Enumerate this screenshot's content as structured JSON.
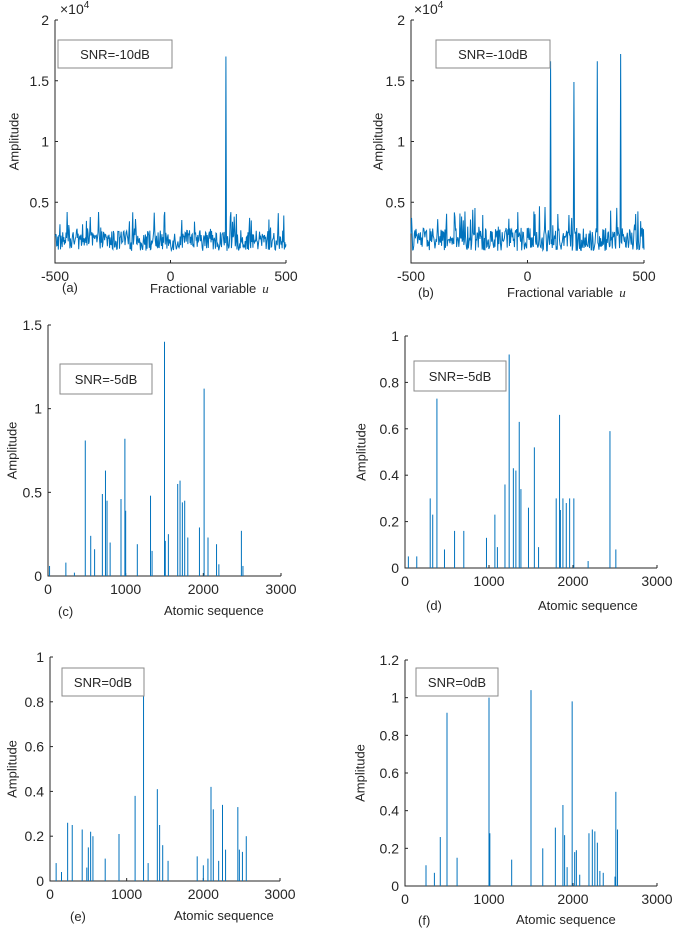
{
  "figure": {
    "series_color": "#0072BD",
    "axis_color": "#262626"
  },
  "chart_data": [
    {
      "id": "a",
      "panel_label": "(a)",
      "type": "line",
      "legend": "SNR=-10dB",
      "xlabel": "Fractional variable",
      "xlabel_var": "u",
      "ylabel": "Amplitude",
      "xlim": [
        -500,
        500
      ],
      "ylim": [
        0,
        20000
      ],
      "xticks": [
        -500,
        0,
        500
      ],
      "xtick_labels": [
        "-500",
        "0",
        "500"
      ],
      "yticks": [
        5000,
        10000,
        15000,
        20000
      ],
      "ytick_labels": [
        "0.5",
        "1",
        "1.5",
        "2"
      ],
      "y_multiplier": "×10",
      "y_multiplier_exp": "4",
      "noise": {
        "x_range": [
          -500,
          500
        ],
        "floor": 1000,
        "typical_peak": 2700,
        "max": 4200
      },
      "peaks": [
        {
          "x": 240,
          "y": 17000
        }
      ]
    },
    {
      "id": "b",
      "panel_label": "(b)",
      "type": "line",
      "legend": "SNR=-10dB",
      "xlabel": "Fractional variable",
      "xlabel_var": "u",
      "ylabel": "Amplitude",
      "xlim": [
        -500,
        500
      ],
      "ylim": [
        0,
        20000
      ],
      "xticks": [
        -500,
        0,
        500
      ],
      "xtick_labels": [
        "-500",
        "0",
        "500"
      ],
      "yticks": [
        5000,
        10000,
        15000,
        20000
      ],
      "ytick_labels": [
        "0.5",
        "1",
        "1.5",
        "2"
      ],
      "y_multiplier": "×10",
      "y_multiplier_exp": "4",
      "noise": {
        "x_range": [
          -500,
          500
        ],
        "floor": 1000,
        "typical_peak": 2900,
        "max": 4700
      },
      "peaks": [
        {
          "x": 100,
          "y": 16600
        },
        {
          "x": 200,
          "y": 14900
        },
        {
          "x": 300,
          "y": 16600
        },
        {
          "x": 400,
          "y": 17200
        }
      ]
    },
    {
      "id": "c",
      "panel_label": "(c)",
      "type": "stem",
      "legend": "SNR=-5dB",
      "xlabel": "Atomic sequence",
      "ylabel": "Amplitude",
      "xlim": [
        0,
        3000
      ],
      "ylim": [
        0,
        1.5
      ],
      "xticks": [
        0,
        1000,
        2000,
        3000
      ],
      "xtick_labels": [
        "0",
        "1000",
        "2000",
        "3000"
      ],
      "yticks": [
        0,
        0.5,
        1,
        1.5
      ],
      "ytick_labels": [
        "0",
        "0.5",
        "1",
        "1.5"
      ],
      "x": [
        20,
        230,
        340,
        480,
        550,
        600,
        700,
        740,
        760,
        800,
        940,
        990,
        1000,
        1150,
        1320,
        1340,
        1500,
        1510,
        1550,
        1670,
        1700,
        1730,
        1760,
        1800,
        1950,
        2010,
        2060,
        2170,
        2200,
        2490,
        2510
      ],
      "values": [
        0.06,
        0.08,
        0.02,
        0.81,
        0.24,
        0.16,
        0.49,
        0.63,
        0.45,
        0.2,
        0.46,
        0.82,
        0.39,
        0.19,
        0.48,
        0.15,
        1.4,
        0.21,
        0.25,
        0.55,
        0.57,
        0.44,
        0.45,
        0.23,
        0.29,
        1.12,
        0.23,
        0.19,
        0.07,
        0.27,
        0.06
      ]
    },
    {
      "id": "d",
      "panel_label": "(d)",
      "type": "stem",
      "legend": "SNR=-5dB",
      "xlabel": "Atomic sequence",
      "ylabel": "Amplitude",
      "xlim": [
        0,
        3000
      ],
      "ylim": [
        0,
        1
      ],
      "xticks": [
        0,
        1000,
        2000,
        3000
      ],
      "xtick_labels": [
        "0",
        "1000",
        "2000",
        "3000"
      ],
      "yticks": [
        0,
        0.2,
        0.4,
        0.6,
        0.8,
        1
      ],
      "ytick_labels": [
        "0",
        "0.2",
        "0.4",
        "0.6",
        "0.8",
        "1"
      ],
      "x": [
        40,
        140,
        300,
        330,
        380,
        470,
        590,
        700,
        970,
        1070,
        1100,
        1190,
        1240,
        1290,
        1320,
        1360,
        1380,
        1470,
        1540,
        1590,
        1800,
        1840,
        1850,
        1880,
        1920,
        1960,
        2010,
        2180,
        2440,
        2510
      ],
      "values": [
        0.05,
        0.05,
        0.3,
        0.23,
        0.73,
        0.08,
        0.16,
        0.16,
        0.13,
        0.23,
        0.09,
        0.36,
        0.92,
        0.43,
        0.42,
        0.63,
        0.34,
        0.26,
        0.52,
        0.09,
        0.3,
        0.66,
        0.25,
        0.3,
        0.28,
        0.3,
        0.3,
        0.03,
        0.59,
        0.08
      ]
    },
    {
      "id": "e",
      "panel_label": "(e)",
      "type": "stem",
      "legend": "SNR=0dB",
      "xlabel": "Atomic sequence",
      "ylabel": "Amplitude",
      "xlim": [
        0,
        3000
      ],
      "ylim": [
        0,
        1
      ],
      "xticks": [
        0,
        1000,
        2000,
        3000
      ],
      "xtick_labels": [
        "0",
        "1000",
        "2000",
        "3000"
      ],
      "yticks": [
        0,
        0.2,
        0.4,
        0.6,
        0.8,
        1
      ],
      "ytick_labels": [
        "0",
        "0.2",
        "0.4",
        "0.6",
        "0.8",
        "1"
      ],
      "x": [
        80,
        150,
        230,
        290,
        420,
        480,
        500,
        530,
        560,
        720,
        900,
        1110,
        1220,
        1280,
        1400,
        1430,
        1470,
        1540,
        1920,
        2000,
        2060,
        2100,
        2130,
        2200,
        2250,
        2290,
        2450,
        2470,
        2510,
        2560
      ],
      "values": [
        0.08,
        0.04,
        0.26,
        0.25,
        0.23,
        0.06,
        0.15,
        0.22,
        0.2,
        0.1,
        0.21,
        0.38,
        0.84,
        0.08,
        0.41,
        0.25,
        0.16,
        0.09,
        0.11,
        0.07,
        0.1,
        0.42,
        0.32,
        0.09,
        0.34,
        0.14,
        0.33,
        0.14,
        0.13,
        0.2
      ]
    },
    {
      "id": "f",
      "panel_label": "(f)",
      "type": "stem",
      "legend": "SNR=0dB",
      "xlabel": "Atomic sequence",
      "ylabel": "Amplitude",
      "xlim": [
        0,
        3000
      ],
      "ylim": [
        0,
        1.2
      ],
      "xticks": [
        0,
        1000,
        2000,
        3000
      ],
      "xtick_labels": [
        "0",
        "1000",
        "2000",
        "3000"
      ],
      "yticks": [
        0,
        0.2,
        0.4,
        0.6,
        0.8,
        1,
        1.2
      ],
      "ytick_labels": [
        "0",
        "0.2",
        "0.4",
        "0.6",
        "0.8",
        "1",
        "1.2"
      ],
      "x": [
        250,
        350,
        420,
        500,
        620,
        1000,
        1010,
        1270,
        1500,
        1640,
        1790,
        1880,
        1900,
        1930,
        1990,
        2020,
        2040,
        2080,
        2190,
        2230,
        2260,
        2290,
        2320,
        2360,
        2500,
        2510,
        2530
      ],
      "values": [
        0.11,
        0.07,
        0.26,
        0.92,
        0.15,
        1.0,
        0.28,
        0.14,
        1.04,
        0.2,
        0.31,
        0.43,
        0.27,
        0.1,
        0.98,
        0.18,
        0.19,
        0.06,
        0.28,
        0.3,
        0.29,
        0.23,
        0.08,
        0.07,
        0.05,
        0.5,
        0.3
      ]
    }
  ]
}
